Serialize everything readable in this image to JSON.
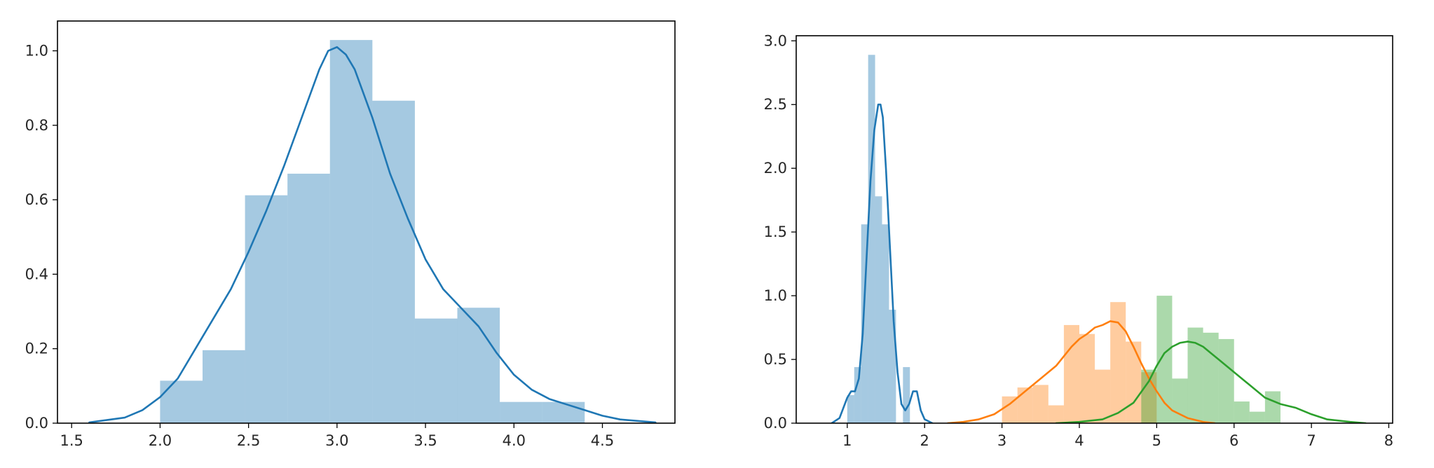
{
  "colors": {
    "blue_bar": "#1f77b4",
    "orange_bar": "#ff7f0e",
    "green_bar": "#2ca02c",
    "blue_line": "#1f77b4",
    "orange_line": "#ff7f0e",
    "green_line": "#2ca02c",
    "axes_edge": "#000000",
    "background": "#ffffff"
  },
  "chart_data": [
    {
      "type": "bar",
      "title": "",
      "xlabel": "",
      "ylabel": "",
      "xlim": [
        1.42,
        4.91
      ],
      "ylim": [
        0.0,
        1.08
      ],
      "xticks": [
        1.5,
        2.0,
        2.5,
        3.0,
        3.5,
        4.0,
        4.5
      ],
      "xtick_labels": [
        "1.5",
        "2.0",
        "2.5",
        "3.0",
        "3.5",
        "4.0",
        "4.5"
      ],
      "yticks": [
        0.0,
        0.2,
        0.4,
        0.6,
        0.8,
        1.0
      ],
      "ytick_labels": [
        "0.0",
        "0.2",
        "0.4",
        "0.6",
        "0.8",
        "1.0"
      ],
      "grid": false,
      "legend": null,
      "series": [
        {
          "color_key": "blue",
          "histogram": {
            "bin_edges": [
              2.0,
              2.24,
              2.48,
              2.72,
              2.96,
              3.2,
              3.44,
              3.68,
              3.92,
              4.16,
              4.4
            ],
            "density": [
              0.114,
              0.196,
              0.612,
              0.67,
              1.029,
              0.866,
              0.281,
              0.31,
              0.057,
              0.057
            ]
          },
          "kde": {
            "x": [
              1.6,
              1.8,
              1.9,
              2.0,
              2.1,
              2.2,
              2.3,
              2.4,
              2.5,
              2.6,
              2.7,
              2.8,
              2.9,
              2.95,
              3.0,
              3.05,
              3.1,
              3.2,
              3.3,
              3.4,
              3.5,
              3.6,
              3.7,
              3.8,
              3.9,
              4.0,
              4.1,
              4.2,
              4.3,
              4.4,
              4.5,
              4.6,
              4.8
            ],
            "y": [
              0.002,
              0.015,
              0.035,
              0.07,
              0.12,
              0.2,
              0.28,
              0.36,
              0.46,
              0.57,
              0.69,
              0.82,
              0.95,
              1.0,
              1.01,
              0.99,
              0.95,
              0.82,
              0.67,
              0.55,
              0.44,
              0.36,
              0.31,
              0.26,
              0.19,
              0.13,
              0.09,
              0.065,
              0.05,
              0.035,
              0.02,
              0.01,
              0.002
            ]
          }
        }
      ]
    },
    {
      "type": "bar",
      "title": "",
      "xlabel": "",
      "ylabel": "",
      "xlim": [
        0.34,
        8.05
      ],
      "ylim": [
        0.0,
        3.04
      ],
      "xticks": [
        1,
        2,
        3,
        4,
        5,
        6,
        7,
        8
      ],
      "xtick_labels": [
        "1",
        "2",
        "3",
        "4",
        "5",
        "6",
        "7",
        "8"
      ],
      "yticks": [
        0.0,
        0.5,
        1.0,
        1.5,
        2.0,
        2.5,
        3.0
      ],
      "ytick_labels": [
        "0.0",
        "0.5",
        "1.0",
        "1.5",
        "2.0",
        "2.5",
        "3.0"
      ],
      "grid": false,
      "legend": null,
      "series": [
        {
          "color_key": "blue",
          "histogram": {
            "bin_edges": [
              1.0,
              1.09,
              1.18,
              1.27,
              1.36,
              1.45,
              1.54,
              1.63,
              1.72,
              1.81,
              1.9
            ],
            "density": [
              0.22,
              0.44,
              1.56,
              2.89,
              1.78,
              1.56,
              0.89,
              0.0,
              0.44,
              0.0
            ]
          },
          "kde": {
            "x": [
              0.8,
              0.9,
              1.0,
              1.05,
              1.1,
              1.15,
              1.2,
              1.25,
              1.3,
              1.35,
              1.4,
              1.43,
              1.46,
              1.5,
              1.55,
              1.6,
              1.65,
              1.7,
              1.75,
              1.8,
              1.85,
              1.9,
              1.95,
              2.0,
              2.1
            ],
            "y": [
              0.0,
              0.04,
              0.2,
              0.25,
              0.25,
              0.35,
              0.7,
              1.3,
              1.9,
              2.3,
              2.5,
              2.5,
              2.4,
              2.0,
              1.4,
              0.8,
              0.4,
              0.15,
              0.1,
              0.15,
              0.25,
              0.25,
              0.1,
              0.03,
              0.0
            ]
          }
        },
        {
          "color_key": "orange",
          "histogram": {
            "bin_edges": [
              3.0,
              3.2,
              3.4,
              3.6,
              3.8,
              4.0,
              4.2,
              4.4,
              4.6,
              4.8,
              5.0,
              5.1
            ],
            "density": [
              0.21,
              0.28,
              0.3,
              0.14,
              0.77,
              0.7,
              0.42,
              0.95,
              0.64,
              0.4,
              0.0
            ]
          },
          "kde": {
            "x": [
              2.3,
              2.5,
              2.7,
              2.9,
              3.1,
              3.3,
              3.5,
              3.7,
              3.9,
              4.0,
              4.1,
              4.2,
              4.3,
              4.4,
              4.5,
              4.6,
              4.7,
              4.8,
              4.9,
              5.0,
              5.1,
              5.2,
              5.4,
              5.6,
              5.75
            ],
            "y": [
              0.0,
              0.01,
              0.03,
              0.07,
              0.15,
              0.25,
              0.35,
              0.45,
              0.6,
              0.66,
              0.7,
              0.75,
              0.77,
              0.8,
              0.79,
              0.72,
              0.6,
              0.47,
              0.35,
              0.25,
              0.16,
              0.1,
              0.04,
              0.01,
              0.0
            ]
          }
        },
        {
          "color_key": "green",
          "histogram": {
            "bin_edges": [
              4.8,
              5.0,
              5.2,
              5.4,
              5.6,
              5.8,
              6.0,
              6.2,
              6.4,
              6.6,
              6.8
            ],
            "density": [
              0.42,
              1.0,
              0.35,
              0.75,
              0.71,
              0.66,
              0.17,
              0.09,
              0.25,
              0.0
            ]
          },
          "kde": {
            "x": [
              3.7,
              4.0,
              4.3,
              4.5,
              4.7,
              4.9,
              5.0,
              5.1,
              5.2,
              5.3,
              5.4,
              5.5,
              5.6,
              5.7,
              5.8,
              5.9,
              6.0,
              6.2,
              6.4,
              6.6,
              6.8,
              7.0,
              7.2,
              7.5,
              7.7
            ],
            "y": [
              0.0,
              0.01,
              0.03,
              0.08,
              0.16,
              0.33,
              0.45,
              0.55,
              0.6,
              0.63,
              0.64,
              0.63,
              0.6,
              0.55,
              0.5,
              0.45,
              0.4,
              0.3,
              0.2,
              0.15,
              0.12,
              0.07,
              0.03,
              0.01,
              0.0
            ]
          }
        }
      ]
    }
  ]
}
